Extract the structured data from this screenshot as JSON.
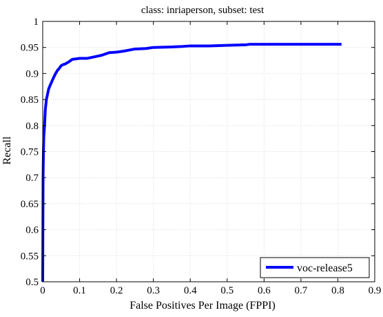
{
  "chart_data": {
    "type": "line",
    "title": "class: inriaperson, subset: test",
    "xlabel": "False Positives Per Image (FPPI)",
    "ylabel": "Recall",
    "xlim": [
      0,
      0.9
    ],
    "ylim": [
      0.5,
      1.0
    ],
    "x_ticks": [
      0,
      0.1,
      0.2,
      0.3,
      0.4,
      0.5,
      0.6,
      0.7,
      0.8,
      0.9
    ],
    "x_tick_labels": [
      "0",
      "0.1",
      "0.2",
      "0.3",
      "0.4",
      "0.5",
      "0.6",
      "0.7",
      "0.8",
      "0.9"
    ],
    "y_ticks": [
      0.5,
      0.55,
      0.6,
      0.65,
      0.7,
      0.75,
      0.8,
      0.85,
      0.9,
      0.95,
      1.0
    ],
    "y_tick_labels": [
      "0.5",
      "0.55",
      "0.6",
      "0.65",
      "0.7",
      "0.75",
      "0.8",
      "0.85",
      "0.9",
      "0.95",
      "1"
    ],
    "grid": true,
    "legend_position": "bottom-right",
    "series": [
      {
        "name": "voc-release5",
        "color": "#0000ff",
        "x": [
          0.0,
          0.0005,
          0.001,
          0.002,
          0.003,
          0.005,
          0.007,
          0.01,
          0.013,
          0.016,
          0.02,
          0.025,
          0.03,
          0.035,
          0.04,
          0.045,
          0.05,
          0.055,
          0.06,
          0.07,
          0.08,
          0.09,
          0.1,
          0.12,
          0.14,
          0.16,
          0.18,
          0.2,
          0.22,
          0.25,
          0.28,
          0.3,
          0.35,
          0.38,
          0.4,
          0.45,
          0.5,
          0.55,
          0.56,
          0.6,
          0.7,
          0.8,
          0.81
        ],
        "y": [
          0.5,
          0.6,
          0.7,
          0.75,
          0.78,
          0.8,
          0.83,
          0.85,
          0.86,
          0.87,
          0.877,
          0.885,
          0.893,
          0.9,
          0.906,
          0.91,
          0.915,
          0.917,
          0.918,
          0.922,
          0.927,
          0.928,
          0.929,
          0.929,
          0.932,
          0.935,
          0.94,
          0.941,
          0.943,
          0.947,
          0.948,
          0.95,
          0.951,
          0.952,
          0.953,
          0.953,
          0.954,
          0.955,
          0.956,
          0.956,
          0.956,
          0.956,
          0.956
        ]
      }
    ]
  }
}
